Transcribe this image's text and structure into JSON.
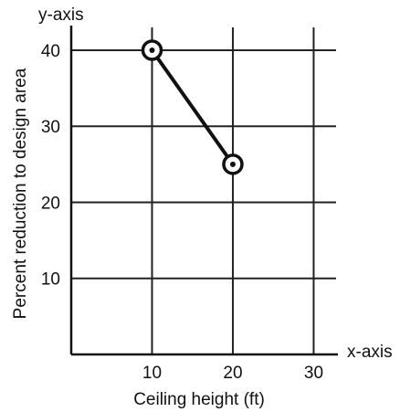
{
  "chart_data": {
    "type": "line",
    "xlabel": "Ceiling height (ft)",
    "ylabel": "Percent reduction to design area",
    "x_axis_name": "x-axis",
    "y_axis_name": "y-axis",
    "xlim": [
      0,
      33
    ],
    "ylim": [
      0,
      43
    ],
    "x_ticks": [
      10,
      20,
      30
    ],
    "y_ticks": [
      10,
      20,
      30,
      40
    ],
    "grid": true,
    "series": [
      {
        "x": [
          10,
          20
        ],
        "y": [
          40,
          25
        ]
      }
    ]
  }
}
